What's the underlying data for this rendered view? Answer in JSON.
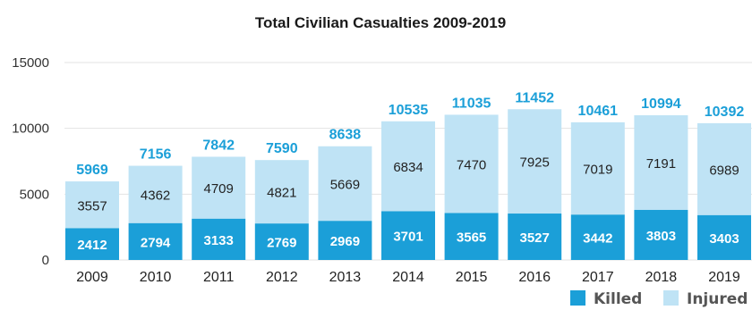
{
  "chart_data": {
    "type": "bar",
    "stacked": true,
    "title": "Total Civilian Casualties 2009-2019",
    "categories": [
      "2009",
      "2010",
      "2011",
      "2012",
      "2013",
      "2014",
      "2015",
      "2016",
      "2017",
      "2018",
      "2019"
    ],
    "series": [
      {
        "name": "Killed",
        "values": [
          2412,
          2794,
          3133,
          2769,
          2969,
          3701,
          3565,
          3527,
          3442,
          3803,
          3403
        ],
        "color": "#1b9fd8"
      },
      {
        "name": "Injured",
        "values": [
          3557,
          4362,
          4709,
          4821,
          5669,
          6834,
          7470,
          7925,
          7019,
          7191,
          6989
        ],
        "color": "#bfe3f5"
      }
    ],
    "totals": [
      5969,
      7156,
      7842,
      7590,
      8638,
      10535,
      11035,
      11452,
      10461,
      10994,
      10392
    ],
    "yticks": [
      0,
      5000,
      10000,
      15000
    ],
    "ylim": [
      0,
      15000
    ],
    "grid": true,
    "legend_position": "bottom-right",
    "colors": {
      "total_label": "#1b9fd8",
      "gridline": "#e3e3e3"
    }
  }
}
